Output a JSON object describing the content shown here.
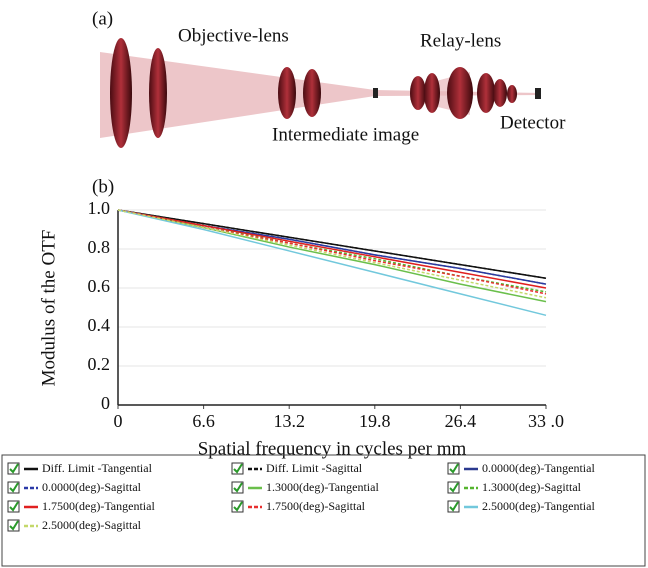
{
  "diagram": {
    "panel_label": "(a)",
    "objective": "Objective-lens",
    "relay": "Relay-lens",
    "intermediate": "Intermediate image",
    "detector": "Detector"
  },
  "chart_data": {
    "type": "line",
    "panel_label": "(b)",
    "x_label": "Spatial frequency in cycles per mm",
    "y_label": "Modulus of the OTF",
    "x": [
      0,
      6.6,
      13.2,
      19.8,
      26.4,
      33
    ],
    "xlim": [
      0,
      33
    ],
    "ylim": [
      0,
      1
    ],
    "xticks": [
      0,
      6.6,
      13.2,
      19.8,
      26.4,
      {
        "value": 33,
        "label": "33 .0"
      }
    ],
    "yticks": [
      0,
      0.2,
      0.4,
      0.6,
      0.8,
      {
        "value": 1,
        "label": "1.0"
      }
    ],
    "grid": true,
    "series": [
      {
        "name": "Diff. Limit -Tangential",
        "color": "#111111",
        "dash": false,
        "values": [
          1,
          0.93,
          0.86,
          0.79,
          0.72,
          0.65
        ]
      },
      {
        "name": "Diff. Limit -Sagittal",
        "color": "#111111",
        "dash": true,
        "values": [
          1,
          0.93,
          0.86,
          0.79,
          0.72,
          0.65
        ]
      },
      {
        "name": "0.0000(deg)-Tangential",
        "color": "#2b3a8f",
        "dash": false,
        "values": [
          1,
          0.92,
          0.85,
          0.77,
          0.7,
          0.62
        ]
      },
      {
        "name": "0.0000(deg)-Sagittal",
        "color": "#2b3aa8",
        "dash": true,
        "values": [
          1,
          0.92,
          0.85,
          0.77,
          0.7,
          0.62
        ]
      },
      {
        "name": "1.3000(deg)-Tangential",
        "color": "#6abf4b",
        "dash": false,
        "values": [
          1,
          0.91,
          0.81,
          0.72,
          0.62,
          0.53
        ]
      },
      {
        "name": "1.3000(deg)-Sagittal",
        "color": "#55b52e",
        "dash": true,
        "values": [
          1,
          0.92,
          0.83,
          0.75,
          0.66,
          0.58
        ]
      },
      {
        "name": "1.7500(deg)-Tangential",
        "color": "#e02020",
        "dash": false,
        "values": [
          1,
          0.92,
          0.84,
          0.76,
          0.68,
          0.6
        ]
      },
      {
        "name": "1.7500(deg)-Sagittal",
        "color": "#e83030",
        "dash": true,
        "values": [
          1,
          0.91,
          0.83,
          0.74,
          0.66,
          0.57
        ]
      },
      {
        "name": "2.5000(deg)-Tangential",
        "color": "#72c8dc",
        "dash": false,
        "values": [
          1,
          0.9,
          0.79,
          0.68,
          0.57,
          0.46
        ]
      },
      {
        "name": "2.5000(deg)-Sagittal",
        "color": "#c4d86a",
        "dash": true,
        "values": [
          1,
          0.91,
          0.82,
          0.73,
          0.64,
          0.55
        ]
      }
    ]
  }
}
